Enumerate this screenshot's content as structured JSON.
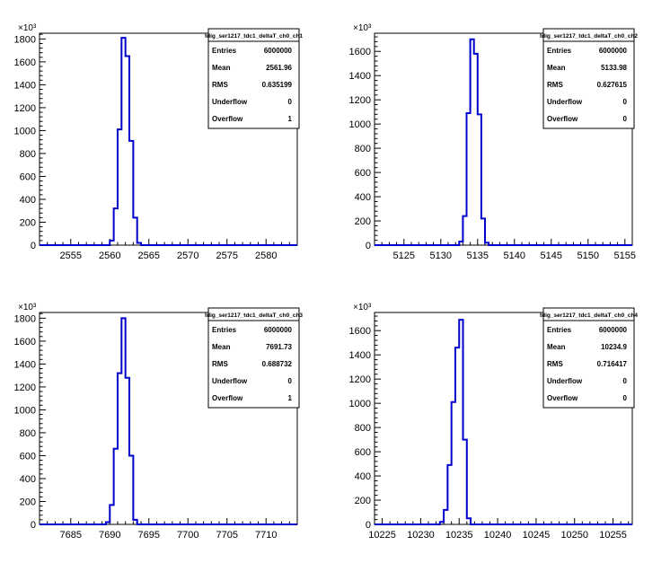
{
  "chart_data": [
    {
      "type": "histogram",
      "title": "tdig_ser1217_tdc1_deltaT_ch0_ch1",
      "xlim": [
        2551,
        2584
      ],
      "ylim": [
        0,
        1850000
      ],
      "y_exponent_label": "×10³",
      "x_ticks": [
        2555,
        2560,
        2565,
        2570,
        2575,
        2580
      ],
      "y_ticks": [
        0,
        200,
        400,
        600,
        800,
        1000,
        1200,
        1400,
        1600,
        1800
      ],
      "bin_width": 0.5,
      "bins": [
        {
          "x": 2560.0,
          "y": 40000
        },
        {
          "x": 2560.5,
          "y": 320000
        },
        {
          "x": 2561.0,
          "y": 1010000
        },
        {
          "x": 2561.5,
          "y": 1810000
        },
        {
          "x": 2562.0,
          "y": 1650000
        },
        {
          "x": 2562.5,
          "y": 910000
        },
        {
          "x": 2563.0,
          "y": 240000
        },
        {
          "x": 2563.5,
          "y": 20000
        }
      ],
      "stats": [
        {
          "label": "Entries",
          "value": "6000000"
        },
        {
          "label": "Mean",
          "value": "2561.96"
        },
        {
          "label": "RMS",
          "value": "0.635199"
        },
        {
          "label": "Underflow",
          "value": "0"
        },
        {
          "label": "Overflow",
          "value": "1"
        }
      ]
    },
    {
      "type": "histogram",
      "title": "tdig_ser1217_tdc1_deltaT_ch0_ch2",
      "xlim": [
        5121,
        5156
      ],
      "ylim": [
        0,
        1750000
      ],
      "y_exponent_label": "×10³",
      "x_ticks": [
        5125,
        5130,
        5135,
        5140,
        5145,
        5150,
        5155
      ],
      "y_ticks": [
        0,
        200,
        400,
        600,
        800,
        1000,
        1200,
        1400,
        1600
      ],
      "bin_width": 0.5,
      "bins": [
        {
          "x": 5132.5,
          "y": 30000
        },
        {
          "x": 5133.0,
          "y": 240000
        },
        {
          "x": 5133.5,
          "y": 1090000
        },
        {
          "x": 5134.0,
          "y": 1700000
        },
        {
          "x": 5134.5,
          "y": 1580000
        },
        {
          "x": 5135.0,
          "y": 1080000
        },
        {
          "x": 5135.5,
          "y": 220000
        },
        {
          "x": 5136.0,
          "y": 20000
        }
      ],
      "stats": [
        {
          "label": "Entries",
          "value": "6000000"
        },
        {
          "label": "Mean",
          "value": "5133.98"
        },
        {
          "label": "RMS",
          "value": "0.627615"
        },
        {
          "label": "Underflow",
          "value": "0"
        },
        {
          "label": "Overflow",
          "value": "0"
        }
      ]
    },
    {
      "type": "histogram",
      "title": "tdig_ser1217_tdc1_deltaT_ch0_ch3",
      "xlim": [
        7681,
        7714
      ],
      "ylim": [
        0,
        1850000
      ],
      "y_exponent_label": "×10³",
      "x_ticks": [
        7685,
        7690,
        7695,
        7700,
        7705,
        7710
      ],
      "y_ticks": [
        0,
        200,
        400,
        600,
        800,
        1000,
        1200,
        1400,
        1600,
        1800
      ],
      "bin_width": 0.5,
      "bins": [
        {
          "x": 7689.5,
          "y": 20000
        },
        {
          "x": 7690.0,
          "y": 170000
        },
        {
          "x": 7690.5,
          "y": 660000
        },
        {
          "x": 7691.0,
          "y": 1320000
        },
        {
          "x": 7691.5,
          "y": 1800000
        },
        {
          "x": 7692.0,
          "y": 1280000
        },
        {
          "x": 7692.5,
          "y": 600000
        },
        {
          "x": 7693.0,
          "y": 40000
        }
      ],
      "stats": [
        {
          "label": "Entries",
          "value": "6000000"
        },
        {
          "label": "Mean",
          "value": "7691.73"
        },
        {
          "label": "RMS",
          "value": "0.688732"
        },
        {
          "label": "Underflow",
          "value": "0"
        },
        {
          "label": "Overflow",
          "value": "1"
        }
      ]
    },
    {
      "type": "histogram",
      "title": "tdig_ser1217_tdc1_deltaT_ch0_ch4",
      "xlim": [
        10224,
        10257.5
      ],
      "ylim": [
        0,
        1750000
      ],
      "y_exponent_label": "×10³",
      "x_ticks": [
        10225,
        10230,
        10235,
        10240,
        10245,
        10250,
        10255
      ],
      "y_ticks": [
        0,
        200,
        400,
        600,
        800,
        1000,
        1200,
        1400,
        1600
      ],
      "bin_width": 0.5,
      "bins": [
        {
          "x": 10232.5,
          "y": 20000
        },
        {
          "x": 10233.0,
          "y": 120000
        },
        {
          "x": 10233.5,
          "y": 490000
        },
        {
          "x": 10234.0,
          "y": 1010000
        },
        {
          "x": 10234.5,
          "y": 1460000
        },
        {
          "x": 10235.0,
          "y": 1690000
        },
        {
          "x": 10235.5,
          "y": 700000
        },
        {
          "x": 10236.0,
          "y": 50000
        }
      ],
      "stats": [
        {
          "label": "Entries",
          "value": "6000000"
        },
        {
          "label": "Mean",
          "value": "10234.9"
        },
        {
          "label": "RMS",
          "value": "0.716417"
        },
        {
          "label": "Underflow",
          "value": "0"
        },
        {
          "label": "Overflow",
          "value": "0"
        }
      ]
    }
  ],
  "colors": {
    "histogram_line": "#0000cc",
    "axis": "#000000",
    "frame": "#000000",
    "background": "#ffffff"
  }
}
